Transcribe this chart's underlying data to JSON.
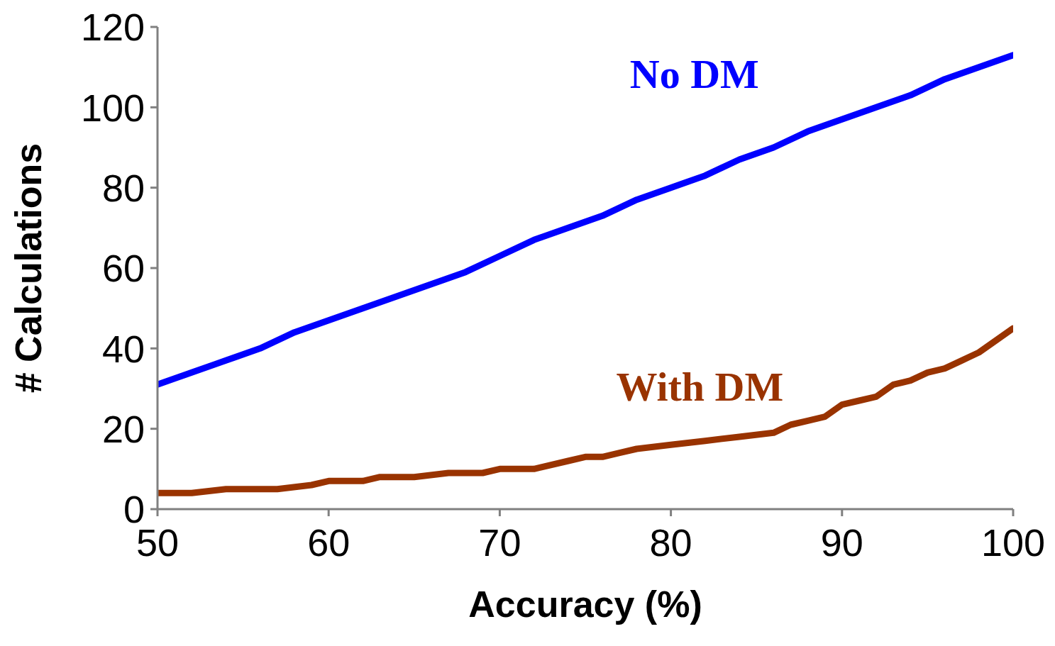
{
  "chart_data": {
    "type": "line",
    "xlabel": "Accuracy (%)",
    "ylabel": "# Calculations",
    "xlim": [
      50,
      100
    ],
    "xticks": [
      50,
      60,
      70,
      80,
      90,
      100
    ],
    "ylim": [
      0,
      120
    ],
    "yticks": [
      0,
      20,
      40,
      60,
      80,
      100,
      120
    ],
    "grid": false,
    "legend": false,
    "marker": "none",
    "line_style": "solid",
    "series": [
      {
        "name": "No DM",
        "color": "#0000ff",
        "x": [
          50,
          52,
          54,
          56,
          58,
          60,
          62,
          64,
          66,
          68,
          70,
          72,
          74,
          76,
          78,
          80,
          82,
          84,
          86,
          88,
          90,
          92,
          94,
          96,
          98,
          100
        ],
        "values": [
          31,
          34,
          37,
          40,
          44,
          47,
          50,
          53,
          56,
          59,
          63,
          67,
          70,
          73,
          77,
          80,
          83,
          87,
          90,
          94,
          97,
          100,
          103,
          107,
          110,
          113
        ]
      },
      {
        "name": "With DM",
        "color": "#993300",
        "x": [
          50,
          52,
          54,
          57,
          59,
          60,
          62,
          63,
          65,
          67,
          69,
          70,
          72,
          74,
          75,
          76,
          77,
          78,
          80,
          82,
          84,
          86,
          87,
          88,
          89,
          90,
          91,
          92,
          93,
          94,
          95,
          96,
          97,
          98,
          99,
          100
        ],
        "values": [
          4,
          4,
          5,
          5,
          6,
          7,
          7,
          8,
          8,
          9,
          9,
          10,
          10,
          12,
          13,
          13,
          14,
          15,
          16,
          17,
          18,
          19,
          21,
          22,
          23,
          26,
          27,
          28,
          31,
          32,
          34,
          35,
          37,
          39,
          42,
          45
        ]
      }
    ]
  }
}
